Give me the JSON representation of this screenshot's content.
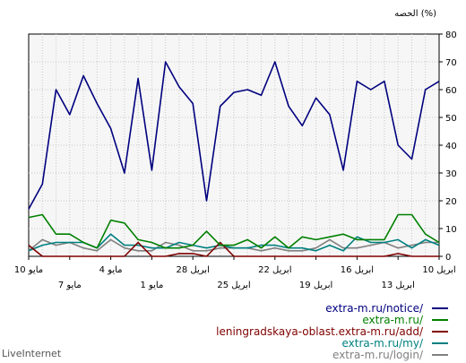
{
  "chart_data": {
    "type": "line",
    "title": "",
    "ylabel": "الحصه (%)",
    "xlabel": "",
    "ylim": [
      0,
      80
    ],
    "y_ticks": [
      0,
      10,
      20,
      30,
      40,
      50,
      60,
      70,
      80
    ],
    "grid": true,
    "x_labels_upper": [
      "10 مايو",
      "4 مايو",
      "28 ابريل",
      "22 ابريل",
      "16 ابريل",
      "10 ابريل"
    ],
    "x_labels_lower": [
      "7 مايو",
      "1 مايو",
      "25 ابريل",
      "19 ابريل",
      "13 ابريل"
    ],
    "series": [
      {
        "name": "extra-m.ru/notice/",
        "color": "#00007f",
        "values": [
          17,
          26,
          60,
          51,
          65,
          55,
          46,
          30,
          64,
          31,
          70,
          61,
          55,
          20,
          54,
          59,
          60,
          58,
          70,
          54,
          47,
          57,
          51,
          31,
          63,
          60,
          63,
          40,
          35,
          60,
          63
        ]
      },
      {
        "name": "extra-m.ru/",
        "color": "#008000",
        "values": [
          14,
          15,
          8,
          8,
          5,
          3,
          13,
          12,
          6,
          5,
          3,
          3,
          4,
          9,
          4,
          4,
          6,
          3,
          7,
          3,
          7,
          6,
          7,
          8,
          6,
          6,
          6,
          15,
          15,
          8,
          5
        ]
      },
      {
        "name": "leningradskaya-oblast.extra-m.ru/add/",
        "color": "#800000",
        "values": [
          4,
          0,
          0,
          0,
          0,
          0,
          0,
          0,
          5,
          0,
          0,
          1,
          1,
          0,
          5,
          0,
          0,
          0,
          0,
          0,
          0,
          0,
          0,
          0,
          0,
          0,
          0,
          1,
          0,
          0,
          0
        ]
      },
      {
        "name": "extra-m.ru/my/",
        "color": "#008080",
        "values": [
          2,
          4,
          5,
          5,
          5,
          3,
          8,
          4,
          4,
          3,
          3,
          5,
          4,
          3,
          4,
          3,
          3,
          4,
          4,
          3,
          3,
          2,
          4,
          2,
          7,
          5,
          5,
          6,
          3,
          6,
          4
        ]
      },
      {
        "name": "extra-m.ru/login/",
        "color": "#808080",
        "values": [
          2,
          6,
          4,
          5,
          3,
          2,
          6,
          3,
          2,
          2,
          5,
          4,
          2,
          2,
          3,
          3,
          3,
          2,
          3,
          2,
          2,
          3,
          6,
          3,
          3,
          4,
          5,
          3,
          4,
          5,
          5
        ]
      }
    ]
  },
  "footer": {
    "brand": "LiveInternet"
  }
}
